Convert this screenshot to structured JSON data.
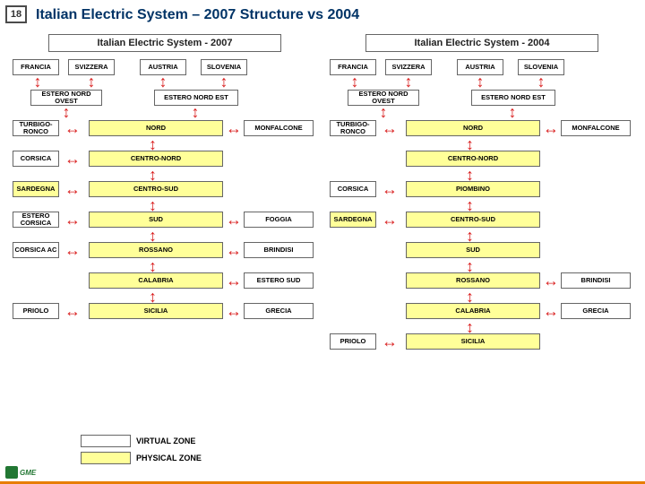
{
  "slide_number": "18",
  "title": "Italian Electric System – 2007 Structure vs 2004",
  "logo_text": "GME",
  "panel_2007": {
    "title": "Italian Electric System - 2007",
    "countries": [
      "FRANCIA",
      "SVIZZERA",
      "AUSTRIA",
      "SLOVENIA"
    ],
    "estero_nord": [
      "ESTERO NORD OVEST",
      "ESTERO NORD EST"
    ],
    "rows": [
      {
        "left": "TURBIGO-RONCO",
        "center": "NORD",
        "right": "MONFALCONE"
      },
      {
        "left": "CORSICA",
        "center": "CENTRO-NORD",
        "right": ""
      },
      {
        "left": "SARDEGNA",
        "center": "CENTRO-SUD",
        "right": ""
      },
      {
        "left": "ESTERO CORSICA",
        "center": "SUD",
        "right": "FOGGIA"
      },
      {
        "left": "CORSICA AC",
        "center": "ROSSANO",
        "right": "BRINDISI"
      },
      {
        "left": "",
        "center": "CALABRIA",
        "right": "ESTERO SUD"
      },
      {
        "left": "PRIOLO",
        "center": "SICILIA",
        "right": "GRECIA"
      }
    ],
    "left_is_virt": [
      true,
      true,
      false,
      true,
      true,
      false,
      true
    ],
    "right_is_virt": [
      true,
      false,
      false,
      true,
      true,
      true,
      true
    ]
  },
  "panel_2004": {
    "title": "Italian Electric System - 2004",
    "countries": [
      "FRANCIA",
      "SVIZZERA",
      "AUSTRIA",
      "SLOVENIA"
    ],
    "estero_nord": [
      "ESTERO NORD OVEST",
      "ESTERO NORD EST"
    ],
    "rows": [
      {
        "left": "TURBIGO-RONCO",
        "center": "NORD",
        "right": "MONFALCONE"
      },
      {
        "left": "",
        "center": "CENTRO-NORD",
        "right": ""
      },
      {
        "left": "CORSICA",
        "center": "PIOMBINO",
        "right": ""
      },
      {
        "left": "SARDEGNA",
        "center": "CENTRO-SUD",
        "right": ""
      },
      {
        "left": "",
        "center": "SUD",
        "right": ""
      },
      {
        "left": "",
        "center": "ROSSANO",
        "right": "BRINDISI"
      },
      {
        "left": "",
        "center": "CALABRIA",
        "right": "GRECIA"
      },
      {
        "left": "PRIOLO",
        "center": "SICILIA",
        "right": ""
      }
    ],
    "left_is_virt": [
      true,
      false,
      true,
      false,
      false,
      false,
      false,
      true
    ],
    "right_is_virt": [
      true,
      false,
      false,
      false,
      false,
      true,
      true,
      false
    ]
  },
  "legend": {
    "virtual": "VIRTUAL ZONE",
    "physical": "PHYSICAL ZONE"
  },
  "colors": {
    "physical_bg": "#ffff99",
    "virtual_bg": "#ffffff",
    "arrow": "#d91f1f",
    "title_text": "#003366",
    "bottom_bar": "#e87d00"
  }
}
